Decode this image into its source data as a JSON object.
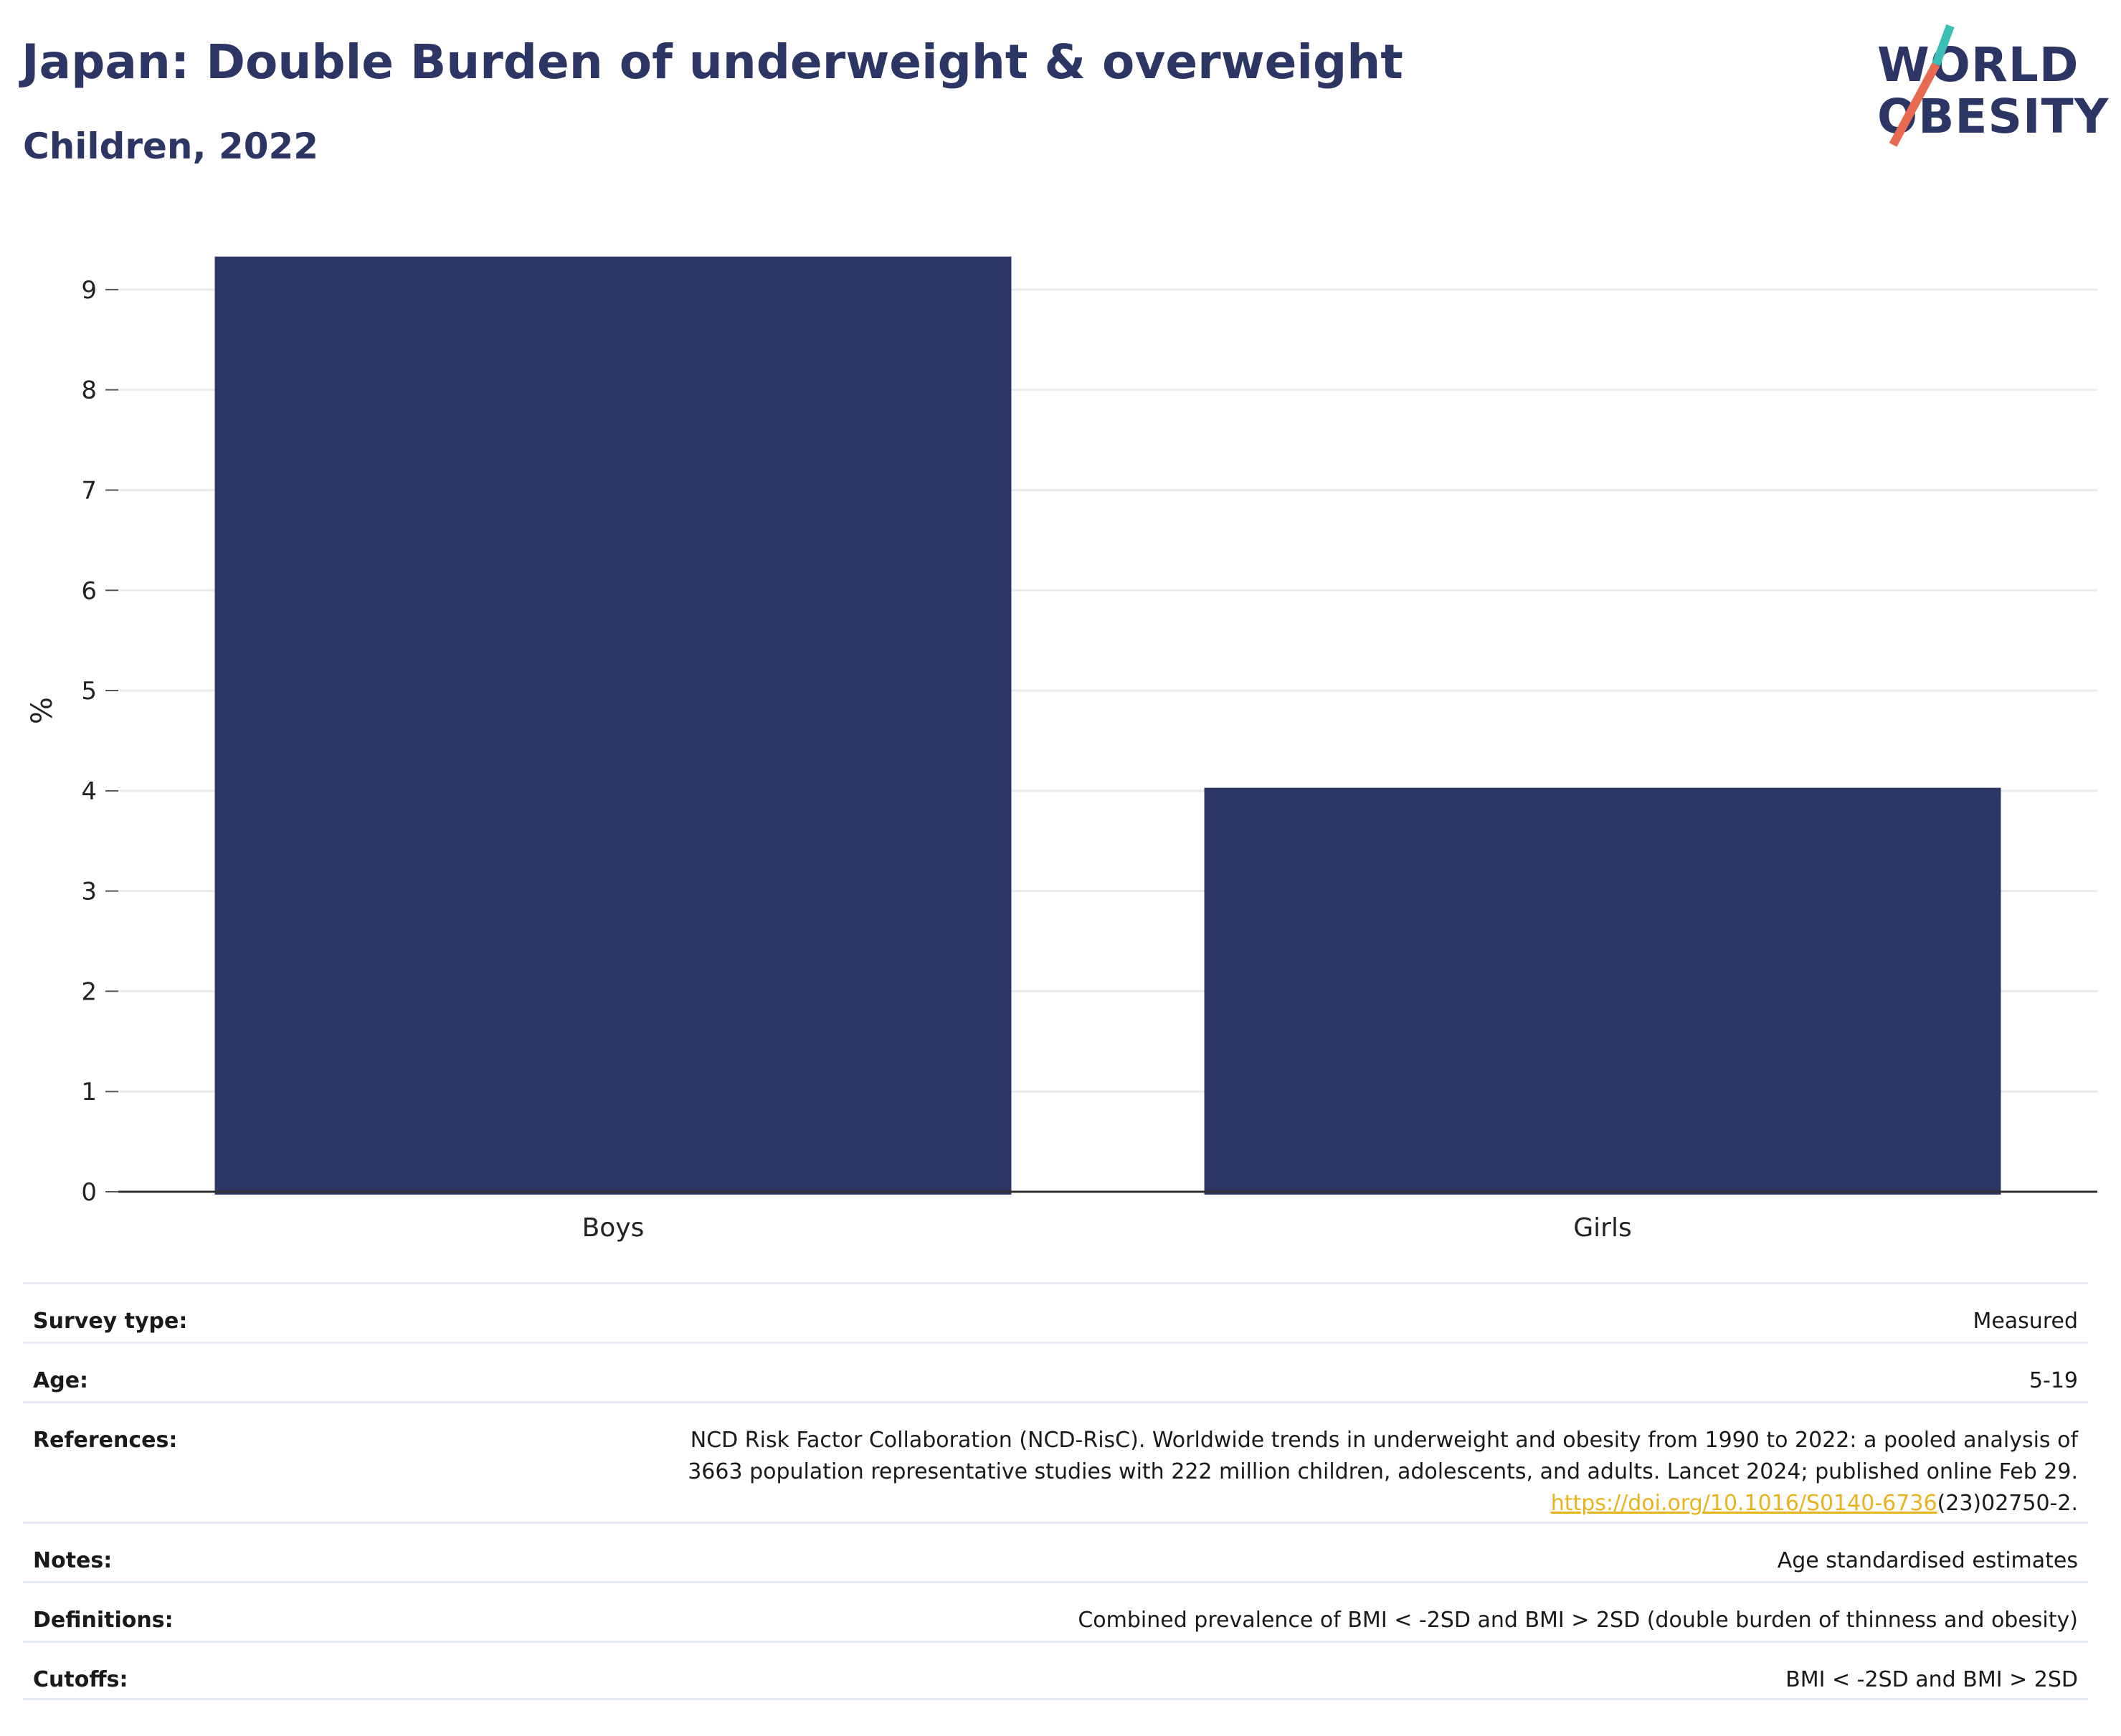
{
  "header": {
    "title": "Japan: Double Burden of underweight & overweight",
    "subtitle": "Children, 2022"
  },
  "logo": {
    "line1": "WORLD",
    "line2": "OBESITY",
    "colors": {
      "text": "#2b3664",
      "slash_top": "#3bbfb4",
      "slash_bottom": "#e86a50"
    }
  },
  "chart_data": {
    "type": "bar",
    "categories": [
      "Boys",
      "Girls"
    ],
    "values": [
      9.33,
      4.03
    ],
    "title": "Japan: Double Burden of underweight & overweight",
    "subtitle": "Children, 2022",
    "xlabel": "",
    "ylabel": "%",
    "ylim": [
      0,
      9.6
    ],
    "yticks": [
      0,
      1,
      2,
      3,
      4,
      5,
      6,
      7,
      8,
      9
    ],
    "grid": true,
    "bar_color": "#2b3664"
  },
  "meta": {
    "survey_type": {
      "label": "Survey type:",
      "value": "Measured"
    },
    "age": {
      "label": "Age:",
      "value": "5-19"
    },
    "references": {
      "label": "References:",
      "line1": "NCD Risk Factor Collaboration (NCD-RisC). Worldwide trends in underweight and obesity from 1990 to 2022: a pooled analysis of",
      "line2": "3663 population representative studies with 222 million children, adolescents, and adults. Lancet 2024; published online Feb 29.",
      "link": "https://doi.org/10.1016/S0140-6736",
      "link_suffix": "(23)02750-2."
    },
    "notes": {
      "label": "Notes:",
      "value": "Age standardised estimates"
    },
    "definitions": {
      "label": "Definitions:",
      "value": "Combined prevalence of BMI < -2SD and BMI > 2SD (double burden of thinness and obesity)"
    },
    "cutoffs": {
      "label": "Cutoffs:",
      "value": "BMI < -2SD and BMI > 2SD"
    }
  }
}
